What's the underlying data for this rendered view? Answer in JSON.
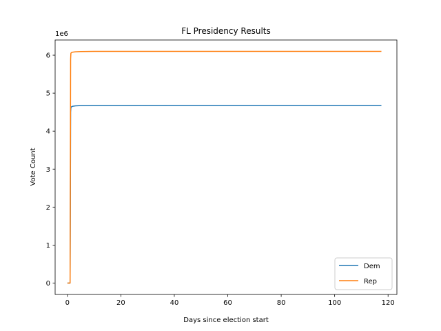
{
  "chart_data": {
    "type": "line",
    "title": "FL Presidency Results",
    "xlabel": "Days since election start",
    "ylabel": "Vote Count",
    "y_offset_label": "1e6",
    "xlim": [
      -4.6,
      123.3
    ],
    "ylim": [
      -0.3,
      6.4
    ],
    "y_unit_multiplier": 1000000,
    "x_ticks": [
      0,
      20,
      40,
      60,
      80,
      100,
      120
    ],
    "y_ticks": [
      0,
      1,
      2,
      3,
      4,
      5,
      6
    ],
    "grid": false,
    "legend_position": "lower-right",
    "series": [
      {
        "name": "Dem",
        "color": "#1f77b4",
        "x": [
          0.0,
          0.8,
          1.0,
          1.1,
          1.2,
          1.3,
          1.5,
          2.0,
          3.0,
          5.0,
          10.0,
          117.5
        ],
        "y": [
          0.0,
          0.0,
          0.0,
          2.0,
          4.5,
          4.62,
          4.64,
          4.655,
          4.665,
          4.672,
          4.678,
          4.68
        ]
      },
      {
        "name": "Rep",
        "color": "#ff7f0e",
        "x": [
          0.0,
          0.8,
          1.0,
          1.1,
          1.2,
          1.3,
          1.5,
          2.0,
          3.0,
          5.0,
          10.0,
          117.5
        ],
        "y": [
          0.0,
          0.0,
          0.0,
          3.0,
          5.9,
          6.05,
          6.07,
          6.08,
          6.09,
          6.095,
          6.1,
          6.1
        ]
      }
    ]
  }
}
